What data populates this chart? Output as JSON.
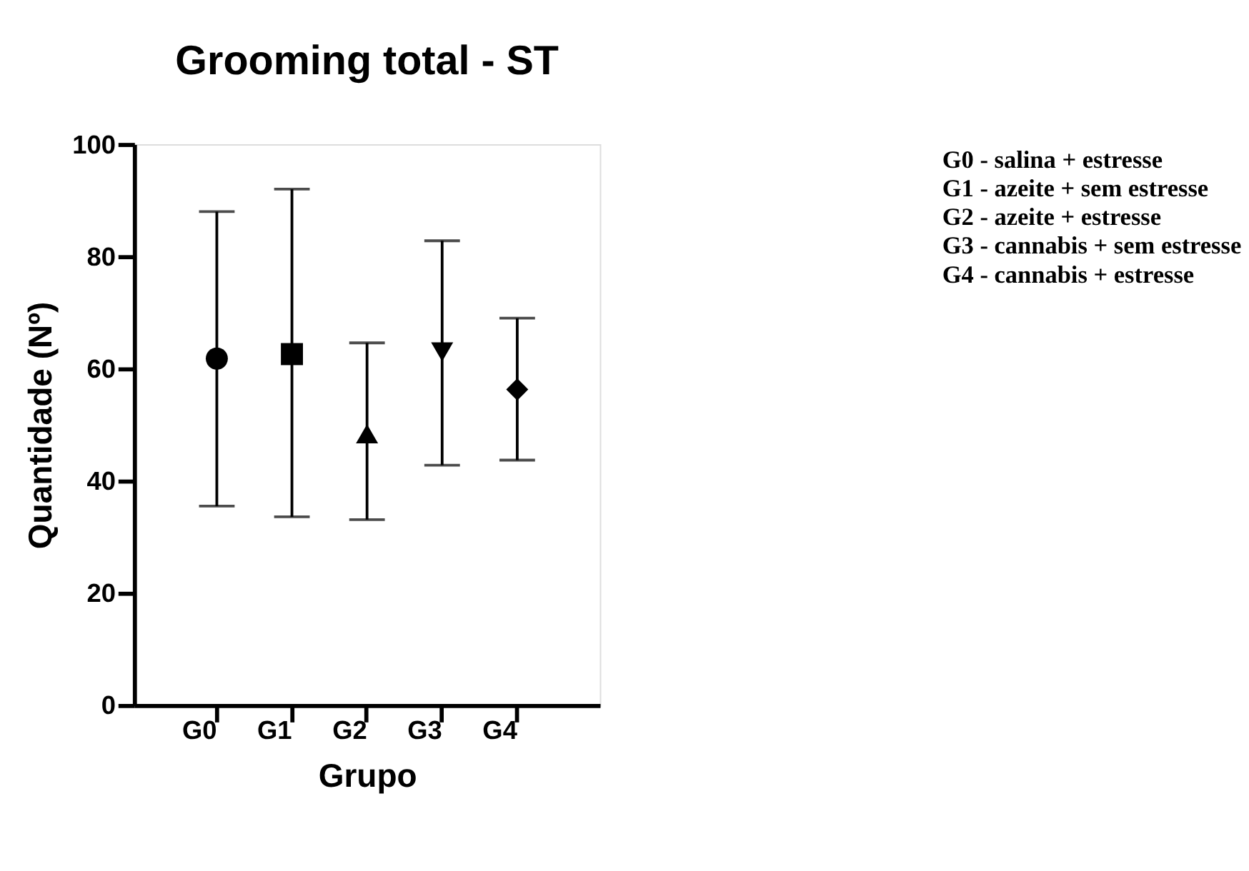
{
  "chart_data": {
    "type": "scatter",
    "title": "Grooming total - ST",
    "xlabel": "Grupo",
    "ylabel": "Quantidade (Nº)",
    "categories": [
      "G0",
      "G1",
      "G2",
      "G3",
      "G4"
    ],
    "series": [
      {
        "color": "#000000",
        "marker": "circle",
        "x": [
          "G0"
        ],
        "values": [
          61.8
        ],
        "errors": [
          [
            35.5,
            88
          ]
        ]
      },
      {
        "color": "#000000",
        "marker": "square",
        "x": [
          "G1"
        ],
        "values": [
          62.6
        ],
        "errors": [
          [
            33.6,
            92
          ]
        ]
      },
      {
        "color": "#000000",
        "marker": "triangle",
        "x": [
          "G2"
        ],
        "values": [
          48.4
        ],
        "errors": [
          [
            33.1,
            64.6
          ]
        ]
      },
      {
        "color": "#000000",
        "marker": "triangle-down",
        "x": [
          "G3"
        ],
        "values": [
          63
        ],
        "errors": [
          [
            42.8,
            82.8
          ]
        ]
      },
      {
        "color": "#000000",
        "marker": "diamond",
        "x": [
          "G4"
        ],
        "values": [
          56.3
        ],
        "errors": [
          [
            43.7,
            69
          ]
        ]
      }
    ],
    "ylim": [
      0,
      100
    ],
    "yticks": [
      0,
      20,
      40,
      60,
      80,
      100
    ],
    "grid": false,
    "annotations": [
      "G0 - salina + estresse",
      "G1 - azeite + sem estresse",
      "G2 - azeite + estresse",
      "G3 - cannabis + sem estresse",
      "G4 - cannabis + estresse"
    ]
  }
}
